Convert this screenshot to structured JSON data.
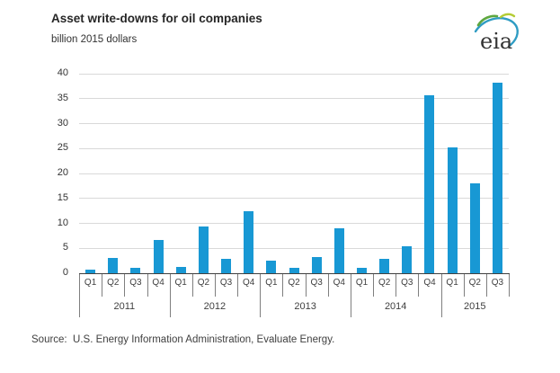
{
  "header": {
    "title": "Asset write-downs for oil companies",
    "subtitle": "billion 2015 dollars",
    "logo_text": "eia"
  },
  "source_line": "Source:  U.S. Energy Information Administration, Evaluate Energy.",
  "colors": {
    "bar": "#1898d4",
    "gridline": "#d9d9d9",
    "axis": "#404040",
    "separator": "#7f7f7f",
    "text": "#333333",
    "logo_blue": "#2f9cc3",
    "logo_green": "#5ea73f",
    "logo_lime": "#b4cc34"
  },
  "chart_data": {
    "type": "bar",
    "title": "Asset write-downs for oil companies",
    "ylabel": "billion 2015 dollars",
    "ylim": [
      0,
      40
    ],
    "yticks": [
      0,
      5,
      10,
      15,
      20,
      25,
      30,
      35,
      40
    ],
    "grid": true,
    "legend": "none",
    "categories": [
      "Q1 2011",
      "Q2 2011",
      "Q3 2011",
      "Q4 2011",
      "Q1 2012",
      "Q2 2012",
      "Q3 2012",
      "Q4 2012",
      "Q1 2013",
      "Q2 2013",
      "Q3 2013",
      "Q4 2013",
      "Q1 2014",
      "Q2 2014",
      "Q3 2014",
      "Q4 2014",
      "Q1 2015",
      "Q2 2015",
      "Q3 2015"
    ],
    "quarter_labels": [
      "Q1",
      "Q2",
      "Q3",
      "Q4",
      "Q1",
      "Q2",
      "Q3",
      "Q4",
      "Q1",
      "Q2",
      "Q3",
      "Q4",
      "Q1",
      "Q2",
      "Q3",
      "Q4",
      "Q1",
      "Q2",
      "Q3"
    ],
    "year_groups": [
      {
        "label": "2011",
        "quarters": 4
      },
      {
        "label": "2012",
        "quarters": 4
      },
      {
        "label": "2013",
        "quarters": 4
      },
      {
        "label": "2014",
        "quarters": 4
      },
      {
        "label": "2015",
        "quarters": 3
      }
    ],
    "values": [
      0.7,
      3.0,
      1.1,
      6.7,
      1.2,
      9.3,
      2.8,
      12.4,
      2.5,
      1.1,
      3.3,
      9.0,
      1.0,
      2.8,
      5.4,
      35.7,
      25.2,
      18.0,
      38.2
    ]
  }
}
